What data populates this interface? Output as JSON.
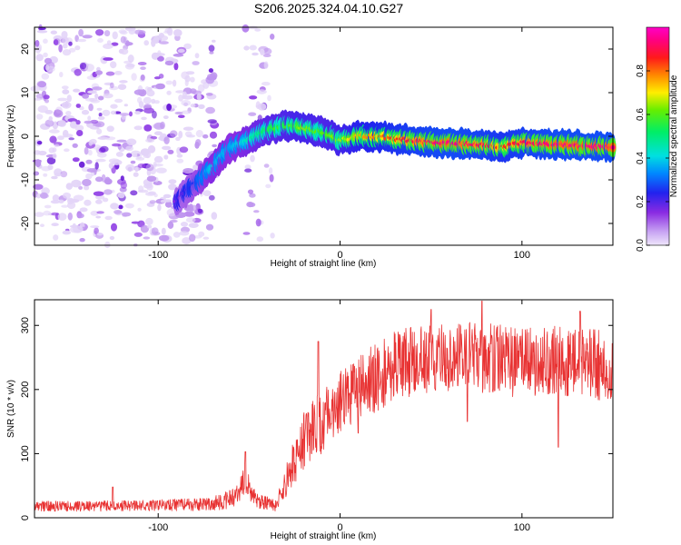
{
  "title": "S206.2025.324.04.10.G27",
  "chart_data": [
    {
      "type": "heatmap",
      "xlabel": "Height of straight line (km)",
      "ylabel": "Frequency (Hz)",
      "xlim": [
        -168,
        150
      ],
      "ylim": [
        -25,
        25
      ],
      "xticks": [
        -100,
        0,
        100
      ],
      "yticks": [
        -20,
        -10,
        0,
        10,
        20
      ],
      "xtick_labels": [
        "-100",
        "0",
        "100"
      ],
      "ytick_labels": [
        "-20",
        "-10",
        "0",
        "10",
        "20"
      ],
      "colorbar": {
        "label": "Normalized spectral amplitude",
        "range": [
          0,
          1
        ],
        "ticks": [
          0.0,
          0.2,
          0.4,
          0.6,
          0.8
        ],
        "tick_labels": [
          "0.0",
          "0.2",
          "0.4",
          "0.6",
          "0.8"
        ],
        "colormap": "rainbow: light lavender → purple → blue → cyan → green → yellow → red → magenta"
      },
      "noise_regions": [
        {
          "x_range": [
            -168,
            -69
          ],
          "y_range": [
            -25,
            25
          ],
          "amplitude": 0.1
        },
        {
          "x_range": [
            -52,
            -37
          ],
          "y_range": [
            -25,
            25
          ],
          "amplitude": 0.05
        }
      ],
      "signal_ridge": {
        "x": [
          -90,
          -80,
          -70,
          -60,
          -50,
          -40,
          -30,
          -20,
          -10,
          0,
          10,
          20,
          40,
          60,
          80,
          90,
          100,
          120,
          150
        ],
        "frequency": [
          -15,
          -11,
          -7,
          -2.5,
          -1,
          1.5,
          2.5,
          2,
          1,
          -1,
          0,
          0,
          -1,
          -1.5,
          -2,
          -2.5,
          -1.5,
          -2,
          -2.5
        ],
        "amplitude": [
          0.1,
          0.2,
          0.35,
          0.3,
          0.4,
          0.5,
          0.55,
          0.6,
          0.55,
          0.6,
          0.7,
          0.75,
          0.85,
          0.9,
          0.85,
          0.8,
          0.85,
          0.9,
          0.9
        ]
      }
    },
    {
      "type": "line",
      "xlabel": "Height of straight line (km)",
      "ylabel": "SNR (10 * v/v)",
      "xlim": [
        -168,
        150
      ],
      "ylim": [
        0,
        340
      ],
      "xticks": [
        -100,
        0,
        100
      ],
      "yticks": [
        0,
        100,
        200,
        300
      ],
      "xtick_labels": [
        "-100",
        "0",
        "100"
      ],
      "ytick_labels": [
        "0",
        "100",
        "200",
        "300"
      ],
      "series": [
        {
          "name": "SNR",
          "color": "#e83232",
          "x": [
            -168,
            -140,
            -100,
            -80,
            -70,
            -60,
            -52,
            -45,
            -35,
            -28,
            -20,
            -10,
            0,
            10,
            20,
            30,
            40,
            60,
            80,
            100,
            120,
            140,
            150
          ],
          "mean": [
            18,
            18,
            20,
            20,
            22,
            30,
            55,
            25,
            20,
            70,
            120,
            150,
            180,
            200,
            220,
            235,
            245,
            250,
            250,
            240,
            245,
            240,
            230
          ],
          "noise_halfwidth": [
            8,
            8,
            9,
            10,
            12,
            15,
            25,
            12,
            10,
            30,
            45,
            50,
            50,
            50,
            55,
            55,
            55,
            55,
            55,
            55,
            55,
            55,
            55
          ],
          "peaks": [
            {
              "x": -125,
              "y": 48
            },
            {
              "x": -52,
              "y": 103
            },
            {
              "x": -12,
              "y": 275
            },
            {
              "x": 50,
              "y": 325
            },
            {
              "x": 78,
              "y": 338
            },
            {
              "x": 120,
              "y": 325
            },
            {
              "x": 132,
              "y": 322
            }
          ],
          "dips": [
            {
              "x": 10,
              "y": 132
            },
            {
              "x": 70,
              "y": 150
            },
            {
              "x": 120,
              "y": 110
            }
          ]
        }
      ]
    }
  ]
}
